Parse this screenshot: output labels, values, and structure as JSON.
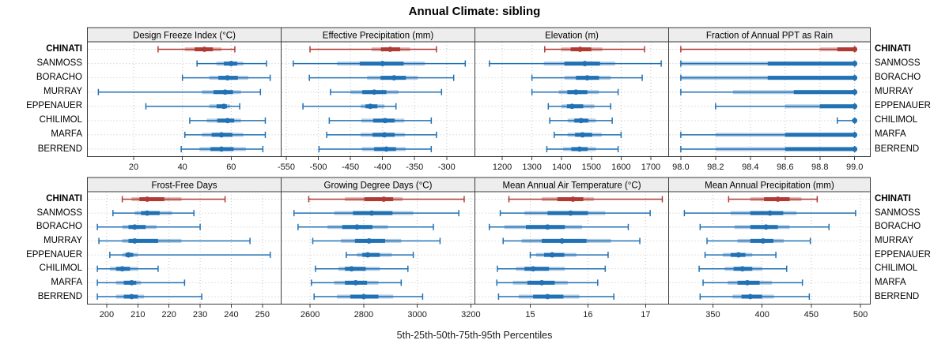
{
  "title": "Annual Climate: sibling",
  "caption": "5th-25th-50th-75th-95th Percentiles",
  "highlight_site": "CHINATI",
  "colors": {
    "highlight": "#B03A32",
    "series": "#2171B5",
    "band_opacity": 0.35,
    "grid": "#C3C3C3",
    "panel_border": "#3C3C3C",
    "strip_bg": "#EDEDED",
    "text": "#000000",
    "tick_text": "#1a1a1a"
  },
  "chart_data": {
    "type": "dot-whisker-trellis",
    "quantile_order": [
      "q05",
      "q25",
      "q50",
      "q75",
      "q95"
    ],
    "categories": [
      "CHINATI",
      "SANMOSS",
      "BORACHO",
      "MURRAY",
      "EPPENAUER",
      "CHILIMOL",
      "MARFA",
      "BERREND"
    ],
    "legend_position": "none",
    "grid": "dotted",
    "panels": [
      {
        "title": "Design Freeze Index (°C)",
        "xlim": [
          1,
          80.5
        ],
        "ticks": [
          {
            "v": 20,
            "label": "20"
          },
          {
            "v": 40,
            "label": "40"
          },
          {
            "v": 60,
            "label": "60"
          }
        ],
        "series": [
          {
            "name": "CHINATI",
            "q": [
              30,
              41,
              49,
              56,
              61.5
            ]
          },
          {
            "name": "SANMOSS",
            "q": [
              46,
              54,
              60,
              65,
              74.5
            ]
          },
          {
            "name": "BORACHO",
            "q": [
              40,
              51,
              58.5,
              67,
              76
            ]
          },
          {
            "name": "MURRAY",
            "q": [
              5.5,
              48,
              57.5,
              64,
              72
            ]
          },
          {
            "name": "EPPENAUER",
            "q": [
              25,
              51,
              57,
              59.5,
              63.5
            ]
          },
          {
            "name": "CHILIMOL",
            "q": [
              43,
              50,
              58.5,
              64,
              74
            ]
          },
          {
            "name": "MARFA",
            "q": [
              41,
              48,
              56,
              65,
              74
            ]
          },
          {
            "name": "BERREND",
            "q": [
              39.5,
              47,
              56,
              66,
              73
            ]
          }
        ]
      },
      {
        "title": "Effective Precipitation (mm)",
        "xlim": [
          -558,
          -256
        ],
        "ticks": [
          {
            "v": -550,
            "label": "-550"
          },
          {
            "v": -500,
            "label": "-500"
          },
          {
            "v": -450,
            "label": "-450"
          },
          {
            "v": -400,
            "label": "-400"
          },
          {
            "v": -350,
            "label": "-350"
          },
          {
            "v": -300,
            "label": "-300"
          }
        ],
        "series": [
          {
            "name": "CHINATI",
            "q": [
              -513,
              -417,
              -388,
              -357,
              -316
            ]
          },
          {
            "name": "SANMOSS",
            "q": [
              -539,
              -471,
              -400,
              -334,
              -271
            ]
          },
          {
            "name": "BORACHO",
            "q": [
              -514,
              -424,
              -382,
              -345,
              -289
            ]
          },
          {
            "name": "MURRAY",
            "q": [
              -481,
              -450,
              -413,
              -375,
              -308
            ]
          },
          {
            "name": "EPPENAUER",
            "q": [
              -524,
              -434,
              -419,
              -397,
              -379
            ]
          },
          {
            "name": "CHILIMOL",
            "q": [
              -483,
              -433,
              -396,
              -366,
              -324
            ]
          },
          {
            "name": "MARFA",
            "q": [
              -487,
              -434,
              -397,
              -365,
              -316
            ]
          },
          {
            "name": "BERREND",
            "q": [
              -499,
              -432,
              -394,
              -364,
              -324
            ]
          }
        ]
      },
      {
        "title": "Elevation (m)",
        "xlim": [
          1108,
          1760
        ],
        "ticks": [
          {
            "v": 1200,
            "label": "1200"
          },
          {
            "v": 1300,
            "label": "1300"
          },
          {
            "v": 1400,
            "label": "1400"
          },
          {
            "v": 1500,
            "label": "1500"
          },
          {
            "v": 1600,
            "label": "1600"
          },
          {
            "v": 1700,
            "label": "1700"
          }
        ],
        "series": [
          {
            "name": "CHINATI",
            "q": [
              1343,
              1399,
              1462,
              1537,
              1679
            ]
          },
          {
            "name": "SANMOSS",
            "q": [
              1157,
              1340,
              1478,
              1580,
              1735
            ]
          },
          {
            "name": "BORACHO",
            "q": [
              1300,
              1410,
              1486,
              1565,
              1671
            ]
          },
          {
            "name": "MURRAY",
            "q": [
              1300,
              1390,
              1448,
              1525,
              1590
            ]
          },
          {
            "name": "EPPENAUER",
            "q": [
              1355,
              1400,
              1435,
              1510,
              1565
            ]
          },
          {
            "name": "CHILIMOL",
            "q": [
              1360,
              1420,
              1465,
              1515,
              1570
            ]
          },
          {
            "name": "MARFA",
            "q": [
              1375,
              1420,
              1470,
              1535,
              1600
            ]
          },
          {
            "name": "BERREND",
            "q": [
              1350,
              1405,
              1460,
              1515,
              1590
            ]
          }
        ]
      },
      {
        "title": "Fraction of Annual PPT as Rain",
        "xlim": [
          97.93,
          99.09
        ],
        "ticks": [
          {
            "v": 98.0,
            "label": "98.0"
          },
          {
            "v": 98.2,
            "label": "98.2"
          },
          {
            "v": 98.4,
            "label": "98.4"
          },
          {
            "v": 98.6,
            "label": "98.6"
          },
          {
            "v": 98.8,
            "label": "98.8"
          },
          {
            "v": 99.0,
            "label": "99.0"
          }
        ],
        "series": [
          {
            "name": "CHINATI",
            "q": [
              98.0,
              98.8,
              99.0,
              99.0,
              99.0
            ]
          },
          {
            "name": "SANMOSS",
            "q": [
              98.0,
              98.0,
              99.0,
              99.0,
              99.0
            ]
          },
          {
            "name": "BORACHO",
            "q": [
              98.0,
              98.0,
              99.0,
              99.0,
              99.0
            ]
          },
          {
            "name": "MURRAY",
            "q": [
              98.0,
              98.3,
              99.0,
              99.0,
              99.0
            ]
          },
          {
            "name": "EPPENAUER",
            "q": [
              98.2,
              98.6,
              99.0,
              99.0,
              99.0
            ]
          },
          {
            "name": "CHILIMOL",
            "q": [
              98.9,
              99.0,
              99.0,
              99.0,
              99.0
            ]
          },
          {
            "name": "MARFA",
            "q": [
              98.0,
              98.2,
              99.0,
              99.0,
              99.0
            ]
          },
          {
            "name": "BERREND",
            "q": [
              98.0,
              98.2,
              99.0,
              99.0,
              99.0
            ]
          }
        ]
      },
      {
        "title": "Frost-Free Days",
        "xlim": [
          193.8,
          256
        ],
        "ticks": [
          {
            "v": 200,
            "label": "200"
          },
          {
            "v": 210,
            "label": "210"
          },
          {
            "v": 220,
            "label": "220"
          },
          {
            "v": 230,
            "label": "230"
          },
          {
            "v": 240,
            "label": "240"
          },
          {
            "v": 250,
            "label": "250"
          }
        ],
        "series": [
          {
            "name": "CHINATI",
            "q": [
              205,
              208,
              213,
              224,
              238
            ]
          },
          {
            "name": "SANMOSS",
            "q": [
              202,
              209,
              213,
              221,
              228
            ]
          },
          {
            "name": "BORACHO",
            "q": [
              197,
              205,
              209,
              216,
              230
            ]
          },
          {
            "name": "MURRAY",
            "q": [
              197.5,
              205,
              209,
              224,
              246
            ]
          },
          {
            "name": "EPPENAUER",
            "q": [
              201,
              205,
              207,
              210,
              252.5
            ]
          },
          {
            "name": "CHILIMOL",
            "q": [
              197,
              201,
              205,
              210,
              216.5
            ]
          },
          {
            "name": "MARFA",
            "q": [
              197,
              203,
              208,
              211,
              225
            ]
          },
          {
            "name": "BERREND",
            "q": [
              197,
              203,
              208,
              212,
              230.5
            ]
          }
        ]
      },
      {
        "title": "Growing Degree Days (°C)",
        "xlim": [
          2492,
          3215
        ],
        "ticks": [
          {
            "v": 2600,
            "label": "2600"
          },
          {
            "v": 2800,
            "label": "2800"
          },
          {
            "v": 3000,
            "label": "3000"
          },
          {
            "v": 3200,
            "label": "3200"
          }
        ],
        "series": [
          {
            "name": "CHINATI",
            "q": [
              2595,
              2730,
              2875,
              2945,
              3175
            ]
          },
          {
            "name": "SANMOSS",
            "q": [
              2540,
              2690,
              2830,
              2985,
              3155
            ]
          },
          {
            "name": "BORACHO",
            "q": [
              2555,
              2665,
              2775,
              2890,
              3060
            ]
          },
          {
            "name": "MURRAY",
            "q": [
              2610,
              2715,
              2820,
              2940,
              3085
            ]
          },
          {
            "name": "EPPENAUER",
            "q": [
              2735,
              2775,
              2815,
              2905,
              2985
            ]
          },
          {
            "name": "CHILIMOL",
            "q": [
              2620,
              2705,
              2755,
              2860,
              2965
            ]
          },
          {
            "name": "MARFA",
            "q": [
              2605,
              2690,
              2770,
              2855,
              2940
            ]
          },
          {
            "name": "BERREND",
            "q": [
              2615,
              2700,
              2800,
              2910,
              3020
            ]
          }
        ]
      },
      {
        "title": "Mean Annual Air Temperature (°C)",
        "xlim": [
          14.04,
          17.4
        ],
        "ticks": [
          {
            "v": 15,
            "label": "15"
          },
          {
            "v": 16,
            "label": "16"
          },
          {
            "v": 17,
            "label": "17"
          }
        ],
        "series": [
          {
            "name": "CHINATI",
            "q": [
              14.63,
              15.2,
              15.74,
              16.1,
              17.29
            ]
          },
          {
            "name": "SANMOSS",
            "q": [
              14.48,
              14.9,
              15.7,
              16.3,
              17.08
            ]
          },
          {
            "name": "BORACHO",
            "q": [
              14.29,
              14.55,
              15.3,
              15.9,
              16.7
            ]
          },
          {
            "name": "MURRAY",
            "q": [
              14.53,
              14.85,
              15.55,
              16.4,
              16.9
            ]
          },
          {
            "name": "EPPENAUER",
            "q": [
              15.0,
              15.1,
              15.38,
              15.8,
              16.35
            ]
          },
          {
            "name": "CHILIMOL",
            "q": [
              14.43,
              14.75,
              15.05,
              15.6,
              16.3
            ]
          },
          {
            "name": "MARFA",
            "q": [
              14.42,
              14.7,
              15.2,
              15.65,
              16.17
            ]
          },
          {
            "name": "BERREND",
            "q": [
              14.45,
              14.8,
              15.3,
              15.85,
              16.45
            ]
          }
        ]
      },
      {
        "title": "Mean Annual Precipitation (mm)",
        "xlim": [
          305,
          510
        ],
        "ticks": [
          {
            "v": 350,
            "label": "350"
          },
          {
            "v": 400,
            "label": "400"
          },
          {
            "v": 450,
            "label": "450"
          },
          {
            "v": 500,
            "label": "500"
          }
        ],
        "series": [
          {
            "name": "CHINATI",
            "q": [
              366,
              388,
              416,
              440,
              456
            ]
          },
          {
            "name": "SANMOSS",
            "q": [
              321,
              368,
              408,
              435,
              495
            ]
          },
          {
            "name": "BORACHO",
            "q": [
              337,
              372,
              404,
              428,
              468
            ]
          },
          {
            "name": "MURRAY",
            "q": [
              344,
              375,
              401,
              422,
              449
            ]
          },
          {
            "name": "EPPENAUER",
            "q": [
              342,
              360,
              376,
              390,
              414
            ]
          },
          {
            "name": "CHILIMOL",
            "q": [
              336,
              362,
              380,
              400,
              425
            ]
          },
          {
            "name": "MARFA",
            "q": [
              340,
              365,
              385,
              410,
              441
            ]
          },
          {
            "name": "BERREND",
            "q": [
              337,
              370,
              388,
              412,
              448
            ]
          }
        ]
      }
    ]
  }
}
